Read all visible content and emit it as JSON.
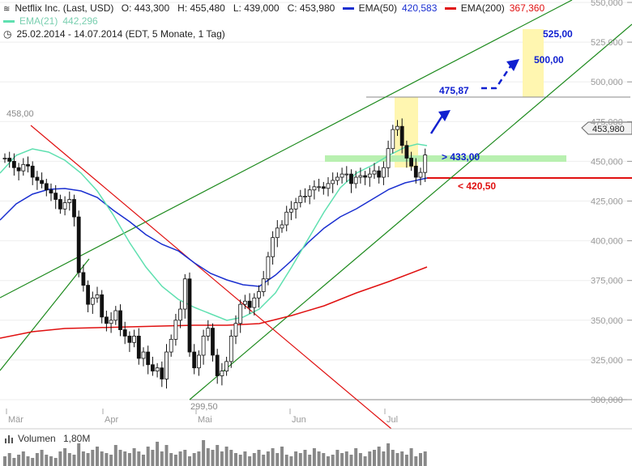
{
  "header": {
    "symbol_label": "Netflix Inc. (Last, USD)",
    "ohlc": "O: 443,300   H: 455,480   L: 439,000   C: 453,980",
    "ema50_label": "EMA(50)",
    "ema50_value": "420,583",
    "ema200_label": "EMA(200)",
    "ema200_value": "367,360",
    "ema21_label": "EMA(21)",
    "ema21_value": "442,296",
    "date_range": "25.02.2014 - 14.07.2014 (EDT, 5 Monate, 1 Tag)"
  },
  "colors": {
    "ema21": "#5fe0b0",
    "ema50": "#1a2fd0",
    "ema200": "#e01010",
    "trend_green": "#1d8a1d",
    "trend_red": "#e01010",
    "target_fill": "#fff6b0",
    "support_fill": "#b8f0b0",
    "annotation_blue": "#1020d0",
    "annotation_red": "#e01010"
  },
  "chart_data": {
    "type": "candlestick",
    "x_labels": [
      "Mär",
      "Apr",
      "Mai",
      "Jun",
      "Jul"
    ],
    "y_ticks": [
      "300,000",
      "325,000",
      "350,000",
      "375,000",
      "400,000",
      "425,000",
      "450,000",
      "475,000",
      "500,000",
      "525,000",
      "550,000"
    ],
    "ylim": [
      292,
      552
    ],
    "last_price": "453,980",
    "series": [
      {
        "name": "EMA(21)",
        "color": "#5fe0b0"
      },
      {
        "name": "EMA(50)",
        "color": "#1a2fd0"
      },
      {
        "name": "EMA(200)",
        "color": "#e01010"
      }
    ],
    "volume_label": "Volumen",
    "volume_value": "1,80M",
    "annotations": {
      "high_label": "458,00",
      "low_label": "299,50",
      "target_475": "475,87",
      "target_500": "500,00",
      "target_525": "525,00",
      "support_433": "> 433,00",
      "support_420": "< 420,50"
    }
  },
  "toolbar": {
    "collapse_icon": "minus-icon",
    "clock_icon": "clock-icon",
    "volume_icon": "bars-icon"
  }
}
